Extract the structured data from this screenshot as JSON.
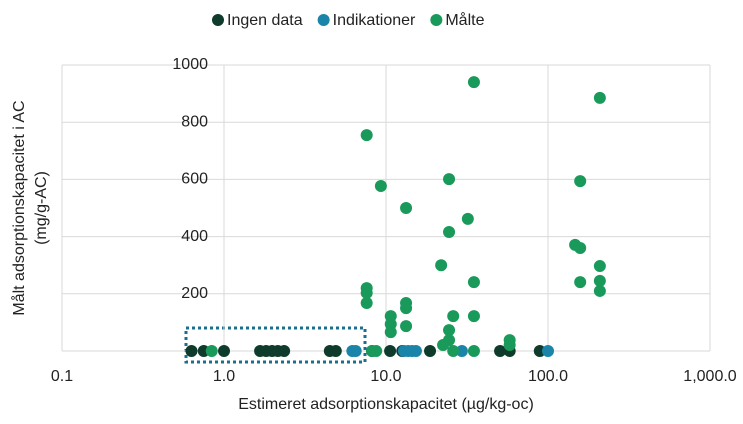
{
  "chart_data": {
    "type": "scatter",
    "log_x": true,
    "grid": true,
    "legend": "top",
    "x_label": "Estimeret adsorptionskapacitet (µg/kg-oc)",
    "y_label": [
      "Målt adsorptionskapacitet i AC",
      "(mg/g-AC)"
    ],
    "xlim": [
      0.1,
      1000
    ],
    "ylim": [
      0,
      1000
    ],
    "xticks": [
      0.1,
      {
        "value": 1,
        "label": "1.0"
      },
      {
        "value": 10,
        "label": "10.0"
      },
      {
        "value": 100,
        "label": "100.0"
      },
      {
        "value": 1000,
        "label": "1,000.0"
      }
    ],
    "yticks": [
      200,
      400,
      600,
      800,
      1000
    ],
    "series": [
      {
        "name": "Ingen data",
        "color": "#0e3b2c",
        "x": [
          0.63,
          0.75,
          1.0,
          1.67,
          1.82,
          1.98,
          2.15,
          2.35,
          4.5,
          4.9,
          8.2,
          10.6,
          12.6,
          18.7,
          50.6,
          58,
          89
        ],
        "values": [
          0,
          0,
          0,
          0,
          0,
          0,
          0,
          0,
          0,
          0,
          0,
          0,
          0,
          0,
          0,
          0,
          0
        ]
      },
      {
        "name": "Indikationer",
        "color": "#1a85a8",
        "x": [
          6.2,
          6.5,
          12.9,
          13.7,
          14.5,
          15.3,
          29.4,
          100
        ],
        "values": [
          0,
          0,
          0,
          0,
          0,
          0,
          0,
          0
        ]
      },
      {
        "name": "Målte",
        "color": "#1a9a5a",
        "x": [
          7.6,
          9.3,
          13.3,
          34.9,
          209,
          158,
          24.5,
          32,
          24.5,
          21.9,
          147,
          158,
          34.9,
          158,
          209,
          209,
          209,
          7.6,
          7.6,
          7.6,
          13.3,
          13.3,
          10.7,
          10.7,
          10.7,
          13.3,
          26,
          34.9,
          58,
          58,
          24.5,
          24.5,
          22.5,
          26,
          34.9,
          8.2,
          0.84,
          8.7
        ],
        "values": [
          755,
          577,
          500,
          940,
          885,
          594,
          601,
          462,
          416,
          300,
          371,
          360,
          241,
          241,
          297,
          245,
          210,
          220,
          203,
          168,
          168,
          150,
          122,
          94,
          66,
          87,
          122,
          122,
          38,
          21,
          73,
          38,
          21,
          0,
          0,
          0,
          0,
          0
        ]
      }
    ]
  }
}
